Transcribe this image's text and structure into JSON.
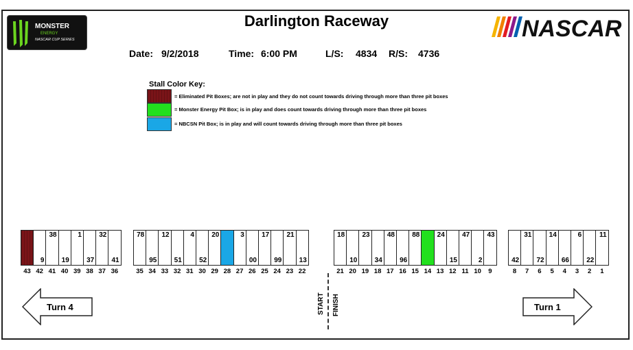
{
  "header": {
    "title": "Darlington Raceway",
    "date_label": "Date:",
    "date_value": "9/2/2018",
    "time_label": "Time:",
    "time_value": "6:00 PM",
    "ls_label": "L/S:",
    "ls_value": "4834",
    "rs_label": "R/S:",
    "rs_value": "4736"
  },
  "logos": {
    "monster_line1": "MONSTER",
    "monster_line2": "ENERGY",
    "monster_line3": "NASCAR CUP SERIES",
    "nascar": "NASCAR"
  },
  "key": {
    "title": "Stall Color Key:",
    "items": [
      {
        "text": "= Eliminated Pit Boxes; are not in play and they do not count towards driving through more than three pit boxes",
        "color": "#7a1418"
      },
      {
        "text": "= Monster Energy Pit Box; is in play and does count towards driving through more than three pit boxes",
        "color": "#22e01e"
      },
      {
        "text": "= NBCSN Pit Box; is in play and will count towards driving through more than three pit boxes",
        "color": "#1aa7e6"
      }
    ]
  },
  "stalls": [
    {
      "n": "43",
      "top": "",
      "bot": "",
      "status": "eliminated"
    },
    {
      "n": "42",
      "top": "",
      "bot": "9"
    },
    {
      "n": "41",
      "top": "38",
      "bot": ""
    },
    {
      "n": "40",
      "top": "",
      "bot": "19"
    },
    {
      "n": "39",
      "top": "1",
      "bot": ""
    },
    {
      "n": "38",
      "top": "",
      "bot": "37"
    },
    {
      "n": "37",
      "top": "32",
      "bot": ""
    },
    {
      "n": "36",
      "top": "",
      "bot": "41"
    },
    {
      "n": "35",
      "top": "78",
      "bot": ""
    },
    {
      "n": "34",
      "top": "",
      "bot": "95"
    },
    {
      "n": "33",
      "top": "12",
      "bot": ""
    },
    {
      "n": "32",
      "top": "",
      "bot": "51"
    },
    {
      "n": "31",
      "top": "4",
      "bot": ""
    },
    {
      "n": "30",
      "top": "",
      "bot": "52"
    },
    {
      "n": "29",
      "top": "20",
      "bot": ""
    },
    {
      "n": "28",
      "top": "",
      "bot": "",
      "status": "nbcsn"
    },
    {
      "n": "27",
      "top": "3",
      "bot": ""
    },
    {
      "n": "26",
      "top": "",
      "bot": "00"
    },
    {
      "n": "25",
      "top": "17",
      "bot": ""
    },
    {
      "n": "24",
      "top": "",
      "bot": "99"
    },
    {
      "n": "23",
      "top": "21",
      "bot": ""
    },
    {
      "n": "22",
      "top": "",
      "bot": "13"
    },
    {
      "n": "21",
      "top": "18",
      "bot": ""
    },
    {
      "n": "20",
      "top": "",
      "bot": "10"
    },
    {
      "n": "19",
      "top": "23",
      "bot": ""
    },
    {
      "n": "18",
      "top": "",
      "bot": "34"
    },
    {
      "n": "17",
      "top": "48",
      "bot": ""
    },
    {
      "n": "16",
      "top": "",
      "bot": "96"
    },
    {
      "n": "15",
      "top": "88",
      "bot": ""
    },
    {
      "n": "14",
      "top": "",
      "bot": "",
      "status": "monster"
    },
    {
      "n": "13",
      "top": "24",
      "bot": ""
    },
    {
      "n": "12",
      "top": "",
      "bot": "15"
    },
    {
      "n": "11",
      "top": "47",
      "bot": ""
    },
    {
      "n": "10",
      "top": "",
      "bot": "2"
    },
    {
      "n": "9",
      "top": "43",
      "bot": ""
    },
    {
      "n": "8",
      "top": "",
      "bot": "42"
    },
    {
      "n": "7",
      "top": "31",
      "bot": ""
    },
    {
      "n": "6",
      "top": "",
      "bot": "72"
    },
    {
      "n": "5",
      "top": "14",
      "bot": ""
    },
    {
      "n": "4",
      "top": "",
      "bot": "66"
    },
    {
      "n": "3",
      "top": "6",
      "bot": ""
    },
    {
      "n": "2",
      "top": "",
      "bot": "22"
    },
    {
      "n": "1",
      "top": "11",
      "bot": ""
    }
  ],
  "turns": {
    "left": "Turn 4",
    "right": "Turn 1"
  },
  "start_finish": {
    "start": "START",
    "finish": "FINISH"
  }
}
